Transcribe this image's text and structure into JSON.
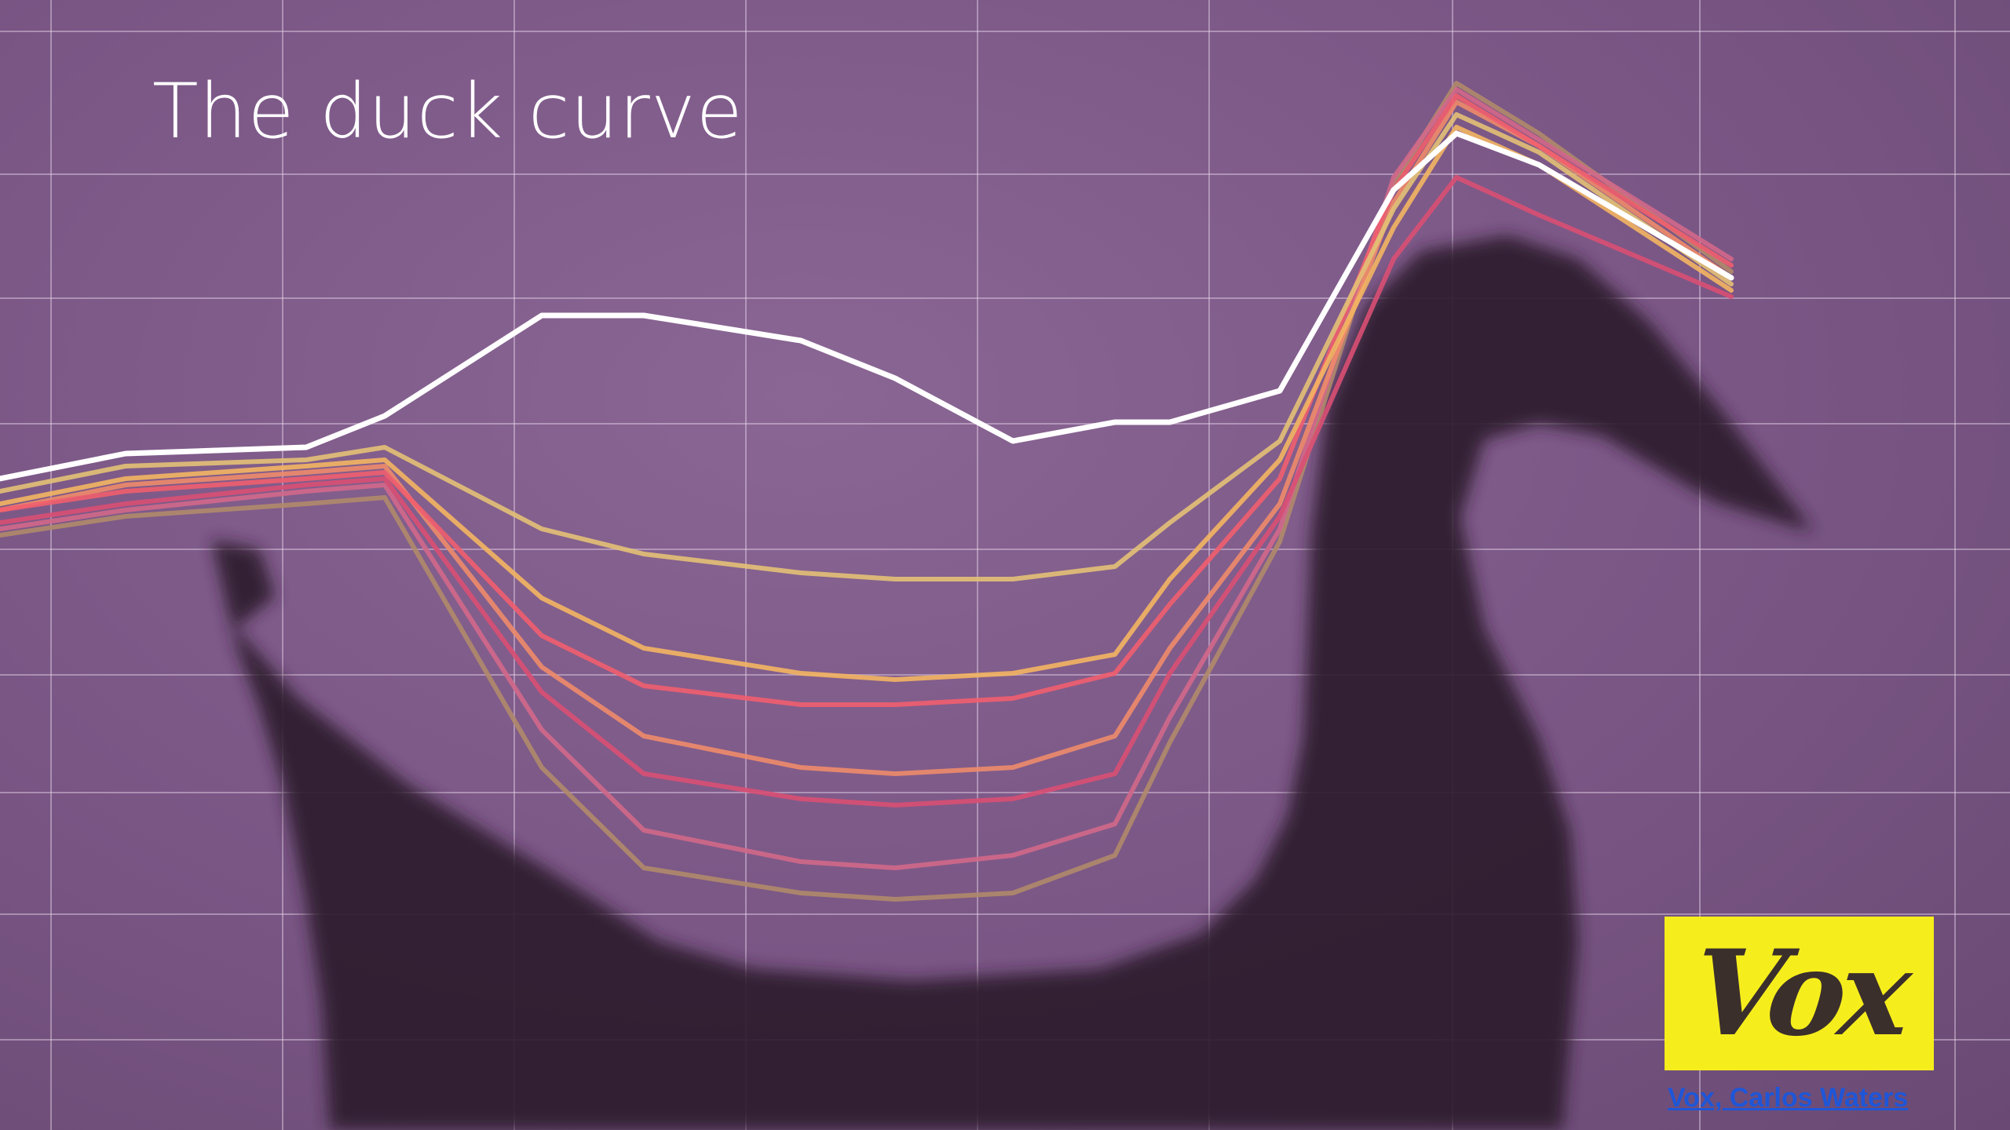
{
  "slide": {
    "title": "The duck curve",
    "logo_text": "Vox",
    "credit_link_text": "Vox, Carlos Waters"
  },
  "colors": {
    "background": "#7a5685",
    "grid": "#e8d8ea",
    "duck_shadow": "#2e1f2f",
    "logo_background": "#f6ee1c",
    "credit_link": "#1e56d8"
  },
  "chart_data": {
    "type": "line",
    "title": "",
    "xlabel": "",
    "ylabel": "",
    "grid": true,
    "series": [
      {
        "color": "#ffffff",
        "values": [
          20.0,
          20.4,
          20.5,
          21.0,
          22.6,
          22.6,
          22.2,
          21.6,
          20.6,
          20.9,
          20.9,
          21.4,
          24.6,
          25.5,
          25.0,
          23.2
        ]
      },
      {
        "color": "#e3c175",
        "values": [
          19.8,
          20.2,
          20.3,
          20.5,
          19.2,
          18.8,
          18.5,
          18.4,
          18.4,
          18.6,
          19.3,
          20.6,
          24.3,
          25.8,
          25.2,
          23.1
        ]
      },
      {
        "color": "#f3b562",
        "values": [
          19.6,
          20.0,
          20.2,
          20.3,
          18.1,
          17.3,
          16.9,
          16.8,
          16.9,
          17.2,
          18.4,
          20.3,
          24.0,
          25.6,
          25.0,
          23.0
        ]
      },
      {
        "color": "#ef5e6e",
        "values": [
          19.5,
          19.8,
          20.0,
          20.1,
          17.5,
          16.7,
          16.4,
          16.4,
          16.5,
          16.9,
          18.0,
          20.0,
          24.6,
          26.1,
          25.3,
          23.4
        ]
      },
      {
        "color": "#ee8b6a",
        "values": [
          19.5,
          19.9,
          20.1,
          20.2,
          17.0,
          15.9,
          15.4,
          15.3,
          15.4,
          15.9,
          17.3,
          19.6,
          24.4,
          26.0,
          25.3,
          23.2
        ]
      },
      {
        "color": "#d94f73",
        "values": [
          19.3,
          19.6,
          19.9,
          20.0,
          16.6,
          15.3,
          14.9,
          14.8,
          14.9,
          15.3,
          16.9,
          19.4,
          23.5,
          24.8,
          24.2,
          22.9
        ]
      },
      {
        "color": "#d1688a",
        "values": [
          19.2,
          19.5,
          19.8,
          19.9,
          16.0,
          14.4,
          13.9,
          13.8,
          14.0,
          14.5,
          16.2,
          19.2,
          24.8,
          26.2,
          25.4,
          23.5
        ]
      },
      {
        "color": "#b08a6a",
        "values": [
          19.1,
          19.4,
          19.6,
          19.7,
          15.4,
          13.8,
          13.4,
          13.3,
          13.4,
          14.0,
          15.8,
          19.0,
          24.7,
          26.3,
          25.5,
          23.3
        ]
      }
    ]
  }
}
